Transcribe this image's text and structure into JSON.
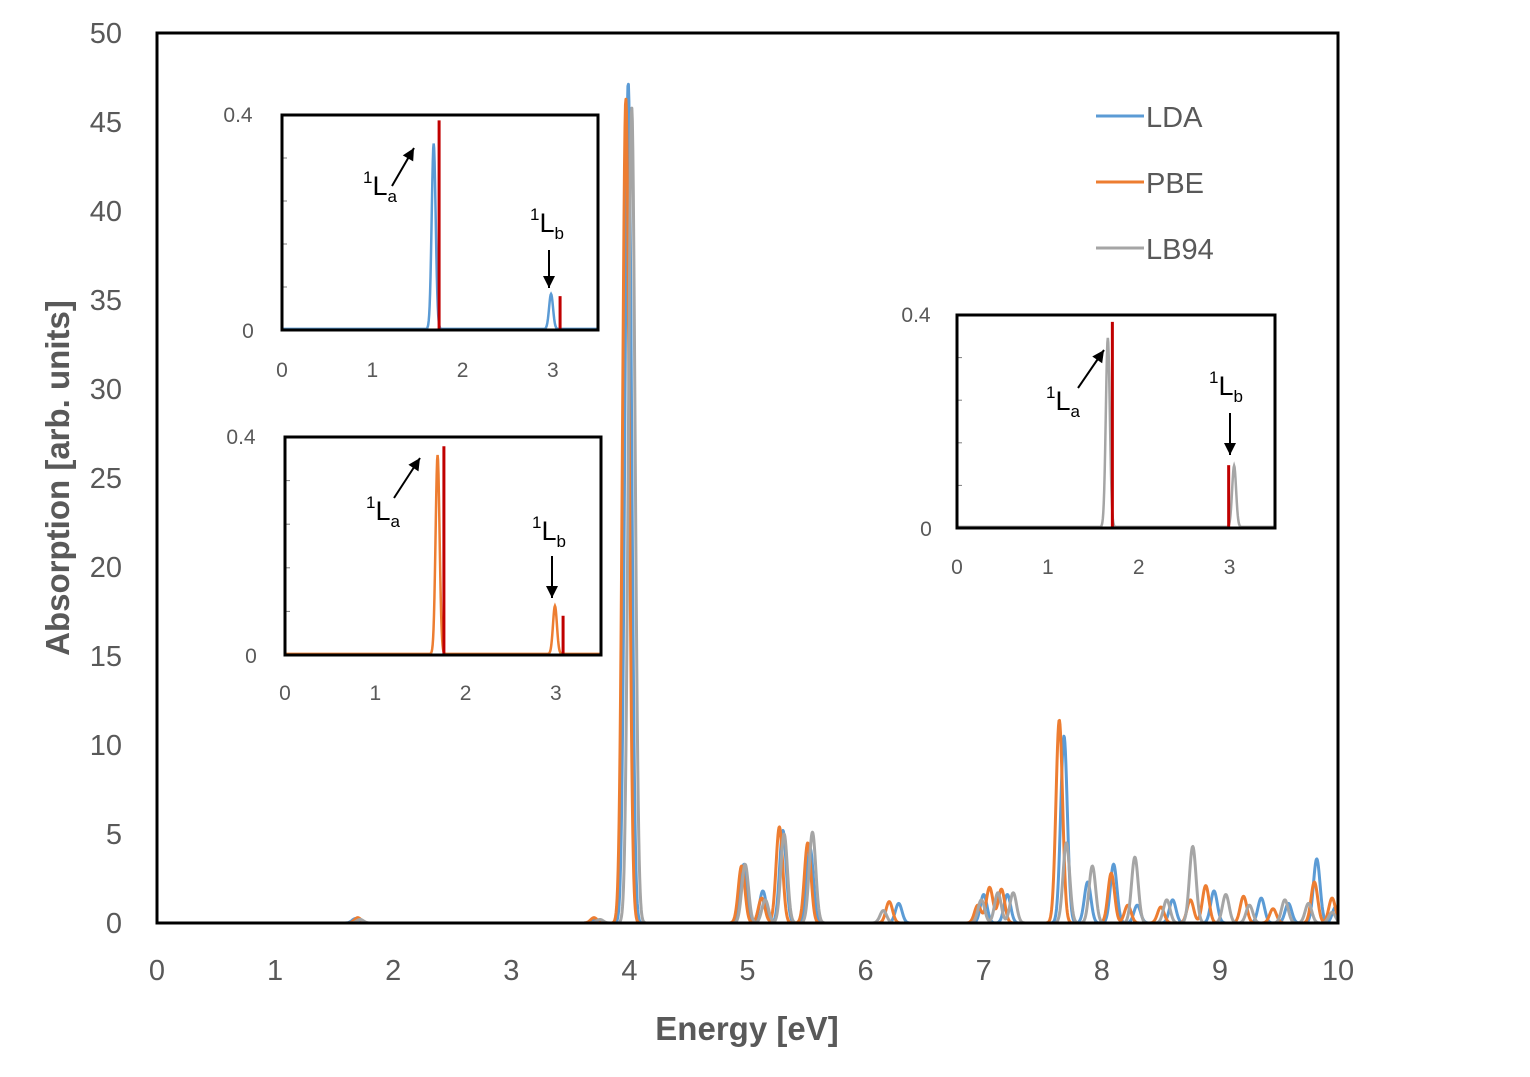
{
  "chart_data": {
    "type": "line",
    "title": "",
    "xlabel": "Energy [eV]",
    "ylabel": "Absorption [arb. units]",
    "xlim": [
      0,
      10
    ],
    "ylim": [
      0,
      50
    ],
    "xticks": [
      "0",
      "1",
      "2",
      "3",
      "4",
      "5",
      "6",
      "7",
      "8",
      "9",
      "10"
    ],
    "yticks": [
      "0",
      "5",
      "10",
      "15",
      "20",
      "25",
      "30",
      "35",
      "40",
      "45",
      "50"
    ],
    "grid": false,
    "legend_position": "top-right",
    "colors": {
      "LDA": "#5b9bd5",
      "PBE": "#ed7d31",
      "LB94": "#a5a5a5",
      "reference": "#c00000"
    },
    "series": [
      {
        "name": "LDA",
        "color": "#5b9bd5",
        "peaks": [
          [
            1.68,
            0.25
          ],
          [
            3.7,
            0.2
          ],
          [
            3.99,
            47.2
          ],
          [
            4.97,
            3.3
          ],
          [
            5.13,
            1.8
          ],
          [
            5.3,
            5.2
          ],
          [
            5.53,
            4.2
          ],
          [
            6.28,
            1.1
          ],
          [
            7.0,
            1.6
          ],
          [
            7.2,
            1.6
          ],
          [
            7.68,
            10.5
          ],
          [
            7.88,
            2.3
          ],
          [
            8.1,
            3.3
          ],
          [
            8.3,
            1.0
          ],
          [
            8.6,
            1.3
          ],
          [
            8.95,
            1.8
          ],
          [
            9.35,
            1.4
          ],
          [
            9.58,
            1.1
          ],
          [
            9.82,
            3.6
          ],
          [
            9.98,
            0.9
          ]
        ]
      },
      {
        "name": "PBE",
        "color": "#ed7d31",
        "peaks": [
          [
            1.7,
            0.3
          ],
          [
            3.7,
            0.3
          ],
          [
            3.97,
            46.3
          ],
          [
            4.95,
            3.2
          ],
          [
            5.12,
            1.4
          ],
          [
            5.27,
            5.4
          ],
          [
            5.51,
            4.5
          ],
          [
            6.2,
            1.2
          ],
          [
            6.95,
            1.0
          ],
          [
            7.05,
            2.0
          ],
          [
            7.15,
            1.9
          ],
          [
            7.64,
            11.4
          ],
          [
            8.08,
            2.8
          ],
          [
            8.22,
            1.0
          ],
          [
            8.5,
            0.9
          ],
          [
            8.75,
            1.3
          ],
          [
            8.88,
            2.1
          ],
          [
            9.2,
            1.5
          ],
          [
            9.45,
            0.8
          ],
          [
            9.8,
            2.3
          ],
          [
            9.95,
            1.4
          ]
        ]
      },
      {
        "name": "LB94",
        "color": "#a5a5a5",
        "peaks": [
          [
            1.72,
            0.2
          ],
          [
            3.75,
            0.2
          ],
          [
            4.02,
            45.8
          ],
          [
            4.98,
            3.3
          ],
          [
            5.15,
            1.3
          ],
          [
            5.31,
            5.0
          ],
          [
            5.55,
            5.1
          ],
          [
            6.15,
            0.7
          ],
          [
            6.98,
            1.3
          ],
          [
            7.12,
            1.7
          ],
          [
            7.25,
            1.7
          ],
          [
            7.7,
            4.5
          ],
          [
            7.92,
            3.2
          ],
          [
            8.28,
            3.7
          ],
          [
            8.55,
            1.3
          ],
          [
            8.77,
            4.3
          ],
          [
            9.05,
            1.6
          ],
          [
            9.25,
            1.0
          ],
          [
            9.55,
            1.3
          ],
          [
            9.75,
            1.1
          ],
          [
            9.95,
            0.6
          ]
        ]
      }
    ],
    "insets": [
      {
        "name": "inset-lda",
        "series": "LDA",
        "position": "upper-left",
        "xlim": [
          0,
          3.5
        ],
        "ylim": [
          0,
          0.4
        ],
        "xticks": [
          "0",
          "1",
          "2",
          "3"
        ],
        "yticks": [
          "0",
          "0.4"
        ],
        "peaks": [
          [
            1.68,
            0.345
          ],
          [
            2.98,
            0.065
          ]
        ],
        "reference_lines": [
          [
            1.74,
            0.39
          ],
          [
            3.08,
            0.063
          ]
        ],
        "annotations": [
          {
            "base": "L",
            "sup": "1",
            "sub": "a"
          },
          {
            "base": "L",
            "sup": "1",
            "sub": "b"
          }
        ]
      },
      {
        "name": "inset-pbe",
        "series": "PBE",
        "position": "middle-left",
        "xlim": [
          0,
          3.5
        ],
        "ylim": [
          0,
          0.4
        ],
        "xticks": [
          "0",
          "1",
          "2",
          "3"
        ],
        "yticks": [
          "0",
          "0.4"
        ],
        "peaks": [
          [
            1.69,
            0.365
          ],
          [
            2.99,
            0.088
          ]
        ],
        "reference_lines": [
          [
            1.76,
            0.383
          ],
          [
            3.08,
            0.072
          ]
        ],
        "annotations": [
          {
            "base": "L",
            "sup": "1",
            "sub": "a"
          },
          {
            "base": "L",
            "sup": "1",
            "sub": "b"
          }
        ]
      },
      {
        "name": "inset-lb94",
        "series": "LB94",
        "position": "right",
        "xlim": [
          0,
          3.5
        ],
        "ylim": [
          0,
          0.4
        ],
        "xticks": [
          "0",
          "1",
          "2",
          "3"
        ],
        "yticks": [
          "0",
          "0.4"
        ],
        "peaks": [
          [
            1.66,
            0.355
          ],
          [
            3.05,
            0.115
          ]
        ],
        "reference_lines": [
          [
            1.71,
            0.387
          ],
          [
            2.99,
            0.118
          ]
        ],
        "annotations": [
          {
            "base": "L",
            "sup": "1",
            "sub": "a"
          },
          {
            "base": "L",
            "sup": "1",
            "sub": "b"
          }
        ]
      }
    ]
  }
}
